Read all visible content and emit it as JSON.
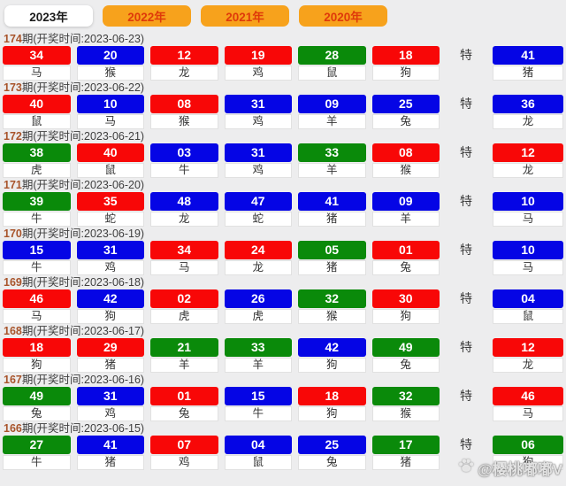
{
  "tabs": [
    {
      "label": "2023年",
      "active": true
    },
    {
      "label": "2022年",
      "active": false
    },
    {
      "label": "2021年",
      "active": false
    },
    {
      "label": "2020年",
      "active": false
    }
  ],
  "special_label": "特",
  "watermark": {
    "text": "@樱桃嘟嘟V",
    "icon": "paw-icon"
  },
  "colors": {
    "red": "#f80707",
    "blue": "#0505e5",
    "green": "#0a8a0a",
    "tab_orange": "#f7a21c",
    "tab_text": "#df3a0a",
    "period_number": "#a8542b"
  },
  "rows": [
    {
      "period": "174",
      "info": "期(开奖时间:2023-06-23)",
      "numbers": [
        {
          "value": "34",
          "color": "red",
          "zodiac": "马"
        },
        {
          "value": "20",
          "color": "blue",
          "zodiac": "猴"
        },
        {
          "value": "12",
          "color": "red",
          "zodiac": "龙"
        },
        {
          "value": "19",
          "color": "red",
          "zodiac": "鸡"
        },
        {
          "value": "28",
          "color": "green",
          "zodiac": "鼠"
        },
        {
          "value": "18",
          "color": "red",
          "zodiac": "狗"
        }
      ],
      "special": {
        "value": "41",
        "color": "blue",
        "zodiac": "猪"
      }
    },
    {
      "period": "173",
      "info": "期(开奖时间:2023-06-22)",
      "numbers": [
        {
          "value": "40",
          "color": "red",
          "zodiac": "鼠"
        },
        {
          "value": "10",
          "color": "blue",
          "zodiac": "马"
        },
        {
          "value": "08",
          "color": "red",
          "zodiac": "猴"
        },
        {
          "value": "31",
          "color": "blue",
          "zodiac": "鸡"
        },
        {
          "value": "09",
          "color": "blue",
          "zodiac": "羊"
        },
        {
          "value": "25",
          "color": "blue",
          "zodiac": "兔"
        }
      ],
      "special": {
        "value": "36",
        "color": "blue",
        "zodiac": "龙"
      }
    },
    {
      "period": "172",
      "info": "期(开奖时间:2023-06-21)",
      "numbers": [
        {
          "value": "38",
          "color": "green",
          "zodiac": "虎"
        },
        {
          "value": "40",
          "color": "red",
          "zodiac": "鼠"
        },
        {
          "value": "03",
          "color": "blue",
          "zodiac": "牛"
        },
        {
          "value": "31",
          "color": "blue",
          "zodiac": "鸡"
        },
        {
          "value": "33",
          "color": "green",
          "zodiac": "羊"
        },
        {
          "value": "08",
          "color": "red",
          "zodiac": "猴"
        }
      ],
      "special": {
        "value": "12",
        "color": "red",
        "zodiac": "龙"
      }
    },
    {
      "period": "171",
      "info": "期(开奖时间:2023-06-20)",
      "numbers": [
        {
          "value": "39",
          "color": "green",
          "zodiac": "牛"
        },
        {
          "value": "35",
          "color": "red",
          "zodiac": "蛇"
        },
        {
          "value": "48",
          "color": "blue",
          "zodiac": "龙"
        },
        {
          "value": "47",
          "color": "blue",
          "zodiac": "蛇"
        },
        {
          "value": "41",
          "color": "blue",
          "zodiac": "猪"
        },
        {
          "value": "09",
          "color": "blue",
          "zodiac": "羊"
        }
      ],
      "special": {
        "value": "10",
        "color": "blue",
        "zodiac": "马"
      }
    },
    {
      "period": "170",
      "info": "期(开奖时间:2023-06-19)",
      "numbers": [
        {
          "value": "15",
          "color": "blue",
          "zodiac": "牛"
        },
        {
          "value": "31",
          "color": "blue",
          "zodiac": "鸡"
        },
        {
          "value": "34",
          "color": "red",
          "zodiac": "马"
        },
        {
          "value": "24",
          "color": "red",
          "zodiac": "龙"
        },
        {
          "value": "05",
          "color": "green",
          "zodiac": "猪"
        },
        {
          "value": "01",
          "color": "red",
          "zodiac": "兔"
        }
      ],
      "special": {
        "value": "10",
        "color": "blue",
        "zodiac": "马"
      }
    },
    {
      "period": "169",
      "info": "期(开奖时间:2023-06-18)",
      "numbers": [
        {
          "value": "46",
          "color": "red",
          "zodiac": "马"
        },
        {
          "value": "42",
          "color": "blue",
          "zodiac": "狗"
        },
        {
          "value": "02",
          "color": "red",
          "zodiac": "虎"
        },
        {
          "value": "26",
          "color": "blue",
          "zodiac": "虎"
        },
        {
          "value": "32",
          "color": "green",
          "zodiac": "猴"
        },
        {
          "value": "30",
          "color": "red",
          "zodiac": "狗"
        }
      ],
      "special": {
        "value": "04",
        "color": "blue",
        "zodiac": "鼠"
      }
    },
    {
      "period": "168",
      "info": "期(开奖时间:2023-06-17)",
      "numbers": [
        {
          "value": "18",
          "color": "red",
          "zodiac": "狗"
        },
        {
          "value": "29",
          "color": "red",
          "zodiac": "猪"
        },
        {
          "value": "21",
          "color": "green",
          "zodiac": "羊"
        },
        {
          "value": "33",
          "color": "green",
          "zodiac": "羊"
        },
        {
          "value": "42",
          "color": "blue",
          "zodiac": "狗"
        },
        {
          "value": "49",
          "color": "green",
          "zodiac": "兔"
        }
      ],
      "special": {
        "value": "12",
        "color": "red",
        "zodiac": "龙"
      }
    },
    {
      "period": "167",
      "info": "期(开奖时间:2023-06-16)",
      "numbers": [
        {
          "value": "49",
          "color": "green",
          "zodiac": "兔"
        },
        {
          "value": "31",
          "color": "blue",
          "zodiac": "鸡"
        },
        {
          "value": "01",
          "color": "red",
          "zodiac": "兔"
        },
        {
          "value": "15",
          "color": "blue",
          "zodiac": "牛"
        },
        {
          "value": "18",
          "color": "red",
          "zodiac": "狗"
        },
        {
          "value": "32",
          "color": "green",
          "zodiac": "猴"
        }
      ],
      "special": {
        "value": "46",
        "color": "red",
        "zodiac": "马"
      }
    },
    {
      "period": "166",
      "info": "期(开奖时间:2023-06-15)",
      "numbers": [
        {
          "value": "27",
          "color": "green",
          "zodiac": "牛"
        },
        {
          "value": "41",
          "color": "blue",
          "zodiac": "猪"
        },
        {
          "value": "07",
          "color": "red",
          "zodiac": "鸡"
        },
        {
          "value": "04",
          "color": "blue",
          "zodiac": "鼠"
        },
        {
          "value": "25",
          "color": "blue",
          "zodiac": "兔"
        },
        {
          "value": "17",
          "color": "green",
          "zodiac": "猪"
        }
      ],
      "special": {
        "value": "06",
        "color": "green",
        "zodiac": "狗"
      }
    }
  ]
}
